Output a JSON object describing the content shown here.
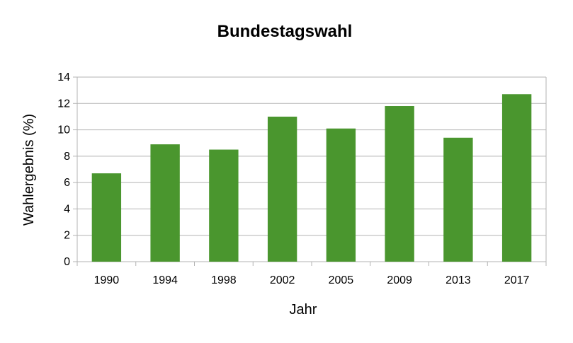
{
  "chart_data": {
    "type": "bar",
    "title": "Bundestagswahl",
    "xlabel": "Jahr",
    "ylabel": "Wahlergebnis (%)",
    "categories": [
      "1990",
      "1994",
      "1998",
      "2002",
      "2005",
      "2009",
      "2013",
      "2017"
    ],
    "values": [
      6.7,
      8.9,
      8.5,
      11.0,
      10.1,
      11.8,
      9.4,
      12.7
    ],
    "ylim": [
      0,
      14
    ],
    "yticks": [
      0,
      2,
      4,
      6,
      8,
      10,
      12,
      14
    ],
    "grid": true,
    "legend": "none",
    "bar_color": "#4a962e",
    "grid_color": "#b3b3b3"
  }
}
